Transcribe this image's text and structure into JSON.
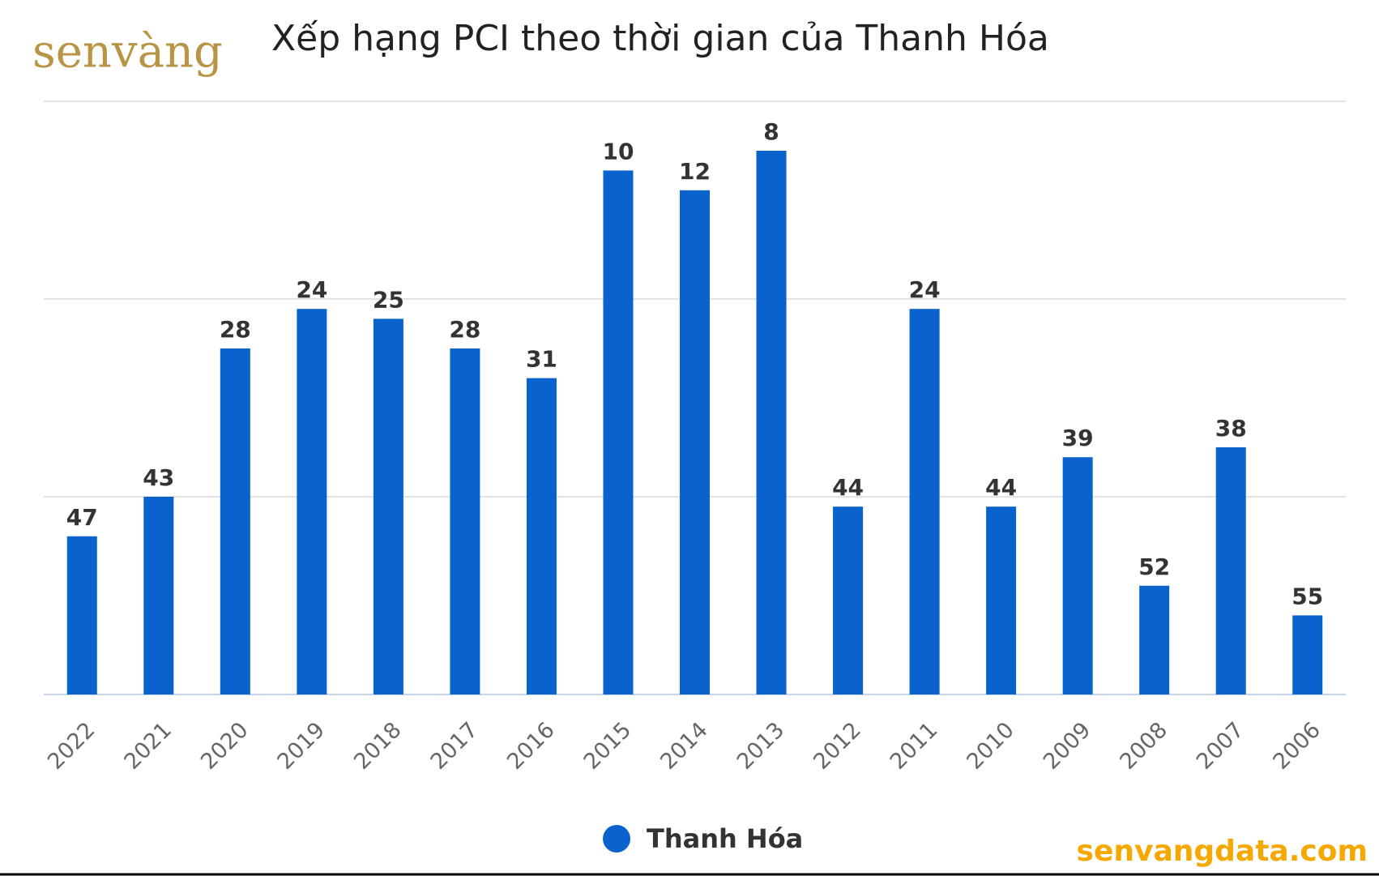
{
  "logo": "senvàng",
  "watermark": "senvangdata.com",
  "chart_data": {
    "type": "bar",
    "title": "Xếp hạng PCI theo thời gian của Thanh Hóa",
    "categories": [
      "2022",
      "2021",
      "2020",
      "2019",
      "2018",
      "2017",
      "2016",
      "2015",
      "2014",
      "2013",
      "2012",
      "2011",
      "2010",
      "2009",
      "2008",
      "2007",
      "2006"
    ],
    "series": [
      {
        "name": "Thanh Hóa",
        "color": "#0a63cc",
        "values": [
          47,
          43,
          28,
          24,
          25,
          28,
          31,
          10,
          12,
          8,
          44,
          24,
          44,
          39,
          52,
          38,
          55
        ]
      }
    ],
    "ylim": [
      63,
      3
    ],
    "grid": true
  }
}
